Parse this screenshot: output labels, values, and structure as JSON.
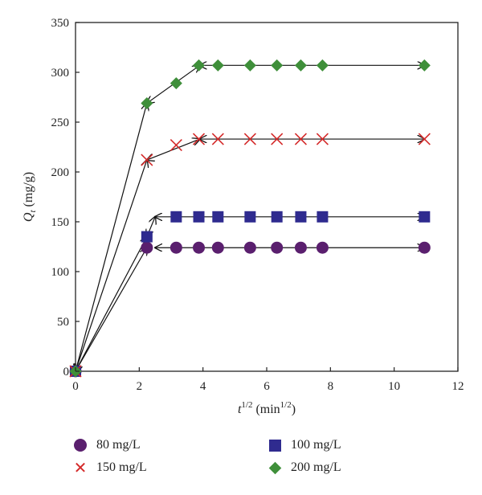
{
  "chart_data": {
    "type": "scatter",
    "xlabel": "t^1/2 (min^1/2)",
    "ylabel": "Q_t (mg/g)",
    "x_ticks": [
      "0",
      "2",
      "4",
      "6",
      "8",
      "10",
      "12"
    ],
    "y_ticks": [
      "0",
      "50",
      "100",
      "150",
      "200",
      "250",
      "300",
      "350"
    ],
    "xlim": [
      0,
      12
    ],
    "ylim": [
      0,
      350
    ],
    "grid": false,
    "legend_position": "bottom",
    "series": [
      {
        "name": "80 mg/L",
        "marker": "circle",
        "color": "#5a1f6e",
        "x": [
          0,
          2.24,
          3.16,
          3.87,
          4.47,
          5.48,
          6.32,
          7.07,
          7.75,
          10.95
        ],
        "y": [
          0,
          124,
          124,
          124,
          124,
          124,
          124,
          124,
          124,
          124
        ]
      },
      {
        "name": "100 mg/L",
        "marker": "square",
        "color": "#2f2b8f",
        "x": [
          0,
          2.24,
          3.16,
          3.87,
          4.47,
          5.48,
          6.32,
          7.07,
          7.75,
          10.95
        ],
        "y": [
          0,
          135,
          155,
          155,
          155,
          155,
          155,
          155,
          155,
          155
        ]
      },
      {
        "name": "150 mg/L",
        "marker": "x",
        "color": "#d42a2a",
        "x": [
          0,
          2.24,
          3.16,
          3.87,
          4.47,
          5.48,
          6.32,
          7.07,
          7.75,
          10.95
        ],
        "y": [
          0,
          212,
          227,
          233,
          233,
          233,
          233,
          233,
          233,
          233
        ]
      },
      {
        "name": "200 mg/L",
        "marker": "diamond",
        "color": "#3f8f3a",
        "x": [
          0,
          2.24,
          3.16,
          3.87,
          4.47,
          5.48,
          6.32,
          7.07,
          7.75,
          10.95
        ],
        "y": [
          0,
          269,
          289,
          307,
          307,
          307,
          307,
          307,
          307,
          307
        ]
      }
    ],
    "fit_lines": [
      {
        "x": [
          0,
          2.24
        ],
        "y": [
          0,
          124
        ]
      },
      {
        "x": [
          0,
          2.24
        ],
        "y": [
          0,
          135
        ]
      },
      {
        "x": [
          0,
          2.24
        ],
        "y": [
          0,
          212
        ]
      },
      {
        "x": [
          0,
          2.24
        ],
        "y": [
          0,
          269
        ]
      },
      {
        "x": [
          2.24,
          2.5
        ],
        "y": [
          135,
          155
        ]
      },
      {
        "x": [
          2.24,
          3.9
        ],
        "y": [
          212,
          233
        ]
      },
      {
        "x": [
          2.24,
          3.9
        ],
        "y": [
          269,
          307
        ]
      },
      {
        "x": [
          2.5,
          10.95
        ],
        "y": [
          124,
          124
        ]
      },
      {
        "x": [
          2.5,
          10.95
        ],
        "y": [
          155,
          155
        ]
      },
      {
        "x": [
          3.9,
          10.95
        ],
        "y": [
          233,
          233
        ]
      },
      {
        "x": [
          3.9,
          10.95
        ],
        "y": [
          307,
          307
        ]
      }
    ]
  }
}
